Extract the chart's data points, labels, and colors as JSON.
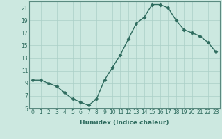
{
  "x": [
    0,
    1,
    2,
    3,
    4,
    5,
    6,
    7,
    8,
    9,
    10,
    11,
    12,
    13,
    14,
    15,
    16,
    17,
    18,
    19,
    20,
    21,
    22,
    23
  ],
  "y": [
    9.5,
    9.5,
    9.0,
    8.5,
    7.5,
    6.5,
    6.0,
    5.5,
    6.5,
    9.5,
    11.5,
    13.5,
    16.0,
    18.5,
    19.5,
    21.5,
    21.5,
    21.0,
    19.0,
    17.5,
    17.0,
    16.5,
    15.5,
    14.0
  ],
  "line_color": "#2e6b5e",
  "marker": "D",
  "marker_size": 2.5,
  "bg_color": "#cce8e0",
  "grid_color": "#aacfc7",
  "xlabel": "Humidex (Indice chaleur)",
  "ylabel": "",
  "ylim": [
    5,
    22
  ],
  "yticks": [
    5,
    7,
    9,
    11,
    13,
    15,
    17,
    19,
    21
  ],
  "xlim": [
    -0.5,
    23.5
  ],
  "xticks": [
    0,
    1,
    2,
    3,
    4,
    5,
    6,
    7,
    8,
    9,
    10,
    11,
    12,
    13,
    14,
    15,
    16,
    17,
    18,
    19,
    20,
    21,
    22,
    23
  ],
  "tick_label_size": 5.5,
  "xlabel_size": 6.5,
  "line_width": 1.0,
  "ax_color": "#2e6b5e",
  "spine_color": "#5a8a80"
}
